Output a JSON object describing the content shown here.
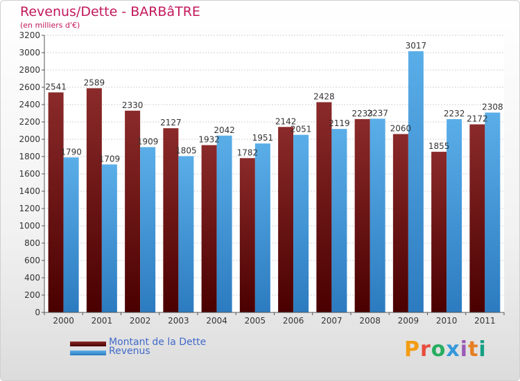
{
  "header": {
    "title": "Revenus/Dette - BARBâTRE",
    "subtitle": "(en milliers d'€)"
  },
  "brand": {
    "text": "Proxiti",
    "colors": [
      "#f39c12",
      "#e74c3c",
      "#27ae60",
      "#3498db",
      "#9b59b6",
      "#e67e22",
      "#16a085"
    ]
  },
  "chart_data": {
    "type": "bar",
    "title": "Revenus/Dette - BARBâTRE",
    "ylabel": "(en milliers d'€)",
    "categories": [
      "2000",
      "2001",
      "2002",
      "2003",
      "2004",
      "2005",
      "2006",
      "2007",
      "2008",
      "2009",
      "2010",
      "2011"
    ],
    "ylim": [
      0,
      3200
    ],
    "yticks": [
      0,
      200,
      400,
      600,
      800,
      1000,
      1200,
      1400,
      1600,
      1800,
      2000,
      2200,
      2400,
      2600,
      2800,
      3000,
      3200
    ],
    "grid": true,
    "legend_position": "bottom-left",
    "series": [
      {
        "name": "Montant de la Dette",
        "color": "#7a1a1a",
        "values": [
          2541,
          2589,
          2330,
          2127,
          1932,
          1782,
          2142,
          2428,
          2233,
          2060,
          1855,
          2172
        ]
      },
      {
        "name": "Revenus",
        "color": "#4a9fe0",
        "values": [
          1790,
          1709,
          1909,
          1805,
          2042,
          1951,
          2051,
          2119,
          2237,
          3017,
          2232,
          2308
        ]
      }
    ]
  }
}
